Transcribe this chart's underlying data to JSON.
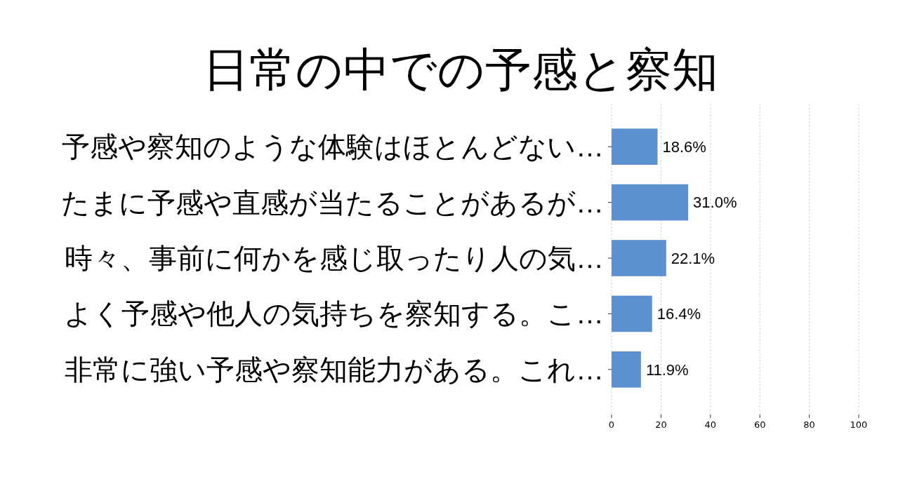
{
  "chart_data": {
    "type": "bar",
    "title": "日常の中での予感と察知",
    "orientation": "horizontal",
    "categories": [
      "予感や察知のような体験はほとんどない…",
      "たまに予感や直感が当たることがあるが…",
      "時々、事前に何かを感じ取ったり人の気…",
      "よく予感や他人の気持ちを察知する。こ…",
      "非常に強い予感や察知能力がある。これ…"
    ],
    "values": [
      18.6,
      31.0,
      22.1,
      16.4,
      11.9
    ],
    "value_labels": [
      "18.6%",
      "31.0%",
      "22.1%",
      "16.4%",
      "11.9%"
    ],
    "color": "#5b8fd0",
    "xlim": [
      0,
      100
    ],
    "xticks": [
      0,
      20,
      40,
      60,
      80,
      100
    ],
    "grid": "x"
  }
}
